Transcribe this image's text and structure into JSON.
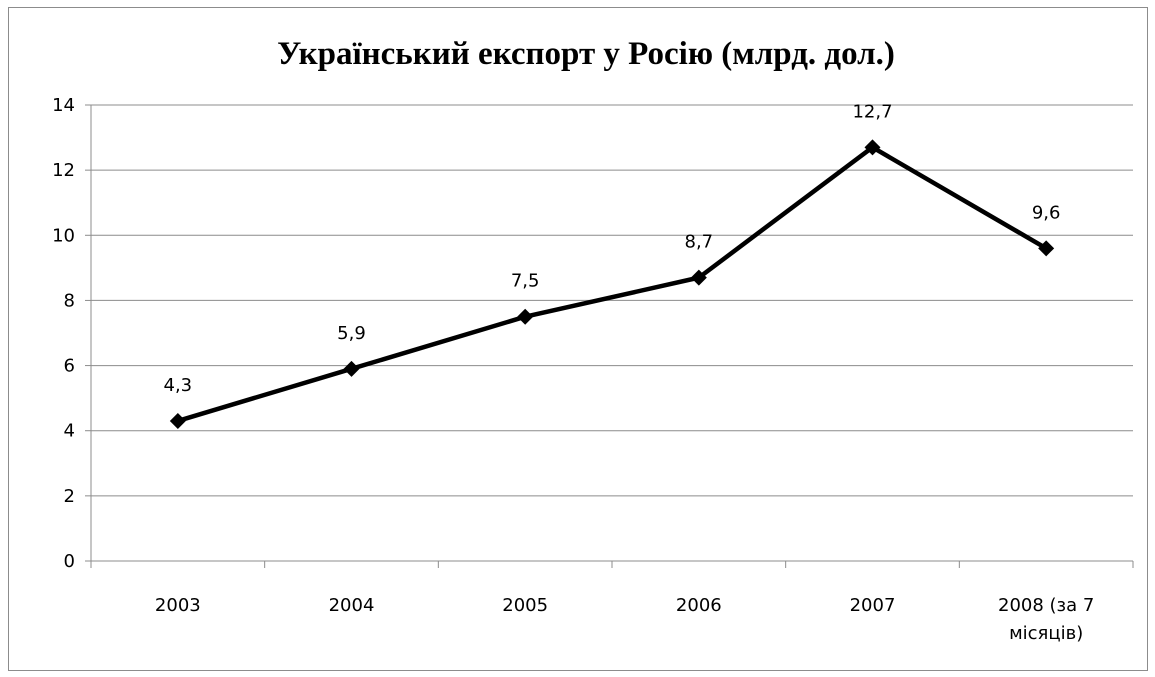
{
  "chart_data": {
    "type": "line",
    "title": "Український експорт у Росію (млрд. дол.)",
    "categories": [
      [
        "2003"
      ],
      [
        "2004"
      ],
      [
        "2005"
      ],
      [
        "2006"
      ],
      [
        "2007"
      ],
      [
        "2008 (за 7",
        "місяців)"
      ]
    ],
    "series": [
      {
        "values": [
          4.3,
          5.9,
          7.5,
          8.7,
          12.7,
          9.6
        ],
        "labels": [
          "4,3",
          "5,9",
          "7,5",
          "8,7",
          "12,7",
          "9,6"
        ],
        "color": "#000000",
        "marker": "diamond"
      }
    ],
    "yticks": [
      "0",
      "2",
      "4",
      "6",
      "8",
      "10",
      "12",
      "14"
    ],
    "ylim": [
      0,
      14
    ],
    "grid": true,
    "legend": "none",
    "colors": {
      "gridline": "#8c8c8c",
      "axis": "#8c8c8c",
      "line": "#000000"
    }
  }
}
